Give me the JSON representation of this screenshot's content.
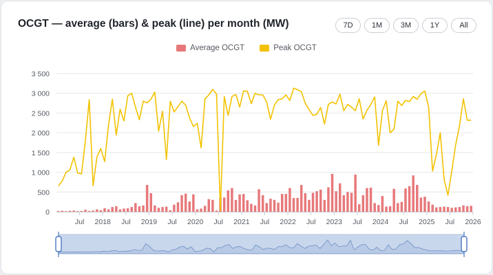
{
  "title": "OCGT — average (bars) & peak (line) per month (MW)",
  "range_buttons": [
    "7D",
    "1M",
    "3M",
    "1Y",
    "All"
  ],
  "colors": {
    "bar": "#e7787a",
    "line": "#f2c200",
    "grid": "#e4e6ea",
    "navigator_fill": "#c9d7ec",
    "navigator_line": "#6f8fc6",
    "handle": "#4a78c2"
  },
  "chart_data": {
    "type": "bar",
    "title": "OCGT — average (bars) & peak (line) per month (MW)",
    "xlabel": "",
    "ylabel": "",
    "ylim": [
      0,
      3500
    ],
    "y_ticks": [
      "0",
      "500",
      "1 000",
      "1 500",
      "2 000",
      "2 500",
      "3 000",
      "3 500"
    ],
    "x_ticks": [
      "Jul",
      "2018",
      "Jul",
      "2019",
      "Jul",
      "2020",
      "Jul",
      "2021",
      "Jul",
      "2022",
      "Jul",
      "2023",
      "Jul",
      "2024",
      "Jul",
      "2025",
      "Jul",
      "2026"
    ],
    "x_tick_months": [
      6,
      12,
      18,
      24,
      30,
      36,
      42,
      48,
      54,
      60,
      66,
      72,
      78,
      84,
      90,
      96,
      102,
      108
    ],
    "start_month": "2017-01",
    "legend_position": "top-center",
    "grid": true,
    "series": [
      {
        "name": "Average OCGT",
        "type": "bar",
        "values": [
          20,
          25,
          15,
          25,
          30,
          15,
          20,
          50,
          20,
          30,
          60,
          40,
          90,
          60,
          120,
          140,
          60,
          80,
          90,
          120,
          220,
          140,
          160,
          680,
          470,
          160,
          100,
          120,
          130,
          40,
          180,
          240,
          420,
          460,
          260,
          440,
          60,
          80,
          150,
          320,
          300,
          30,
          360,
          360,
          540,
          600,
          300,
          440,
          450,
          290,
          200,
          160,
          570,
          420,
          220,
          330,
          300,
          230,
          450,
          450,
          600,
          350,
          350,
          680,
          470,
          300,
          480,
          520,
          560,
          300,
          620,
          960,
          520,
          720,
          420,
          500,
          480,
          940,
          190,
          420,
          600,
          610,
          220,
          170,
          400,
          130,
          140,
          580,
          220,
          250,
          590,
          650,
          920,
          680,
          360,
          380,
          260,
          180,
          110,
          120,
          130,
          120,
          100,
          110,
          120,
          160,
          140,
          150
        ]
      },
      {
        "name": "Peak OCGT",
        "type": "line",
        "values": [
          650,
          780,
          1000,
          1060,
          1380,
          980,
          960,
          1800,
          2840,
          660,
          1390,
          1600,
          1270,
          2200,
          2850,
          1940,
          2600,
          2300,
          2940,
          3000,
          2650,
          2330,
          2800,
          2760,
          2850,
          3030,
          2040,
          2550,
          1320,
          2800,
          2530,
          2660,
          2800,
          2700,
          2380,
          2160,
          2240,
          1620,
          2860,
          2960,
          3100,
          2980,
          30,
          2920,
          2440,
          2920,
          2970,
          2650,
          3060,
          3050,
          2740,
          3000,
          2960,
          2960,
          2780,
          2340,
          2700,
          2840,
          2860,
          2960,
          2820,
          3130,
          3090,
          3040,
          2750,
          2590,
          2440,
          2470,
          2640,
          2220,
          2720,
          2780,
          2730,
          2980,
          2560,
          2720,
          2650,
          2560,
          2860,
          2350,
          2570,
          2720,
          2910,
          1680,
          2560,
          2810,
          2000,
          2090,
          2800,
          2690,
          2820,
          2790,
          2920,
          2850,
          2990,
          3060,
          2640,
          1030,
          1450,
          2000,
          820,
          420,
          1040,
          1700,
          2180,
          2860,
          2320,
          2320
        ]
      }
    ]
  }
}
